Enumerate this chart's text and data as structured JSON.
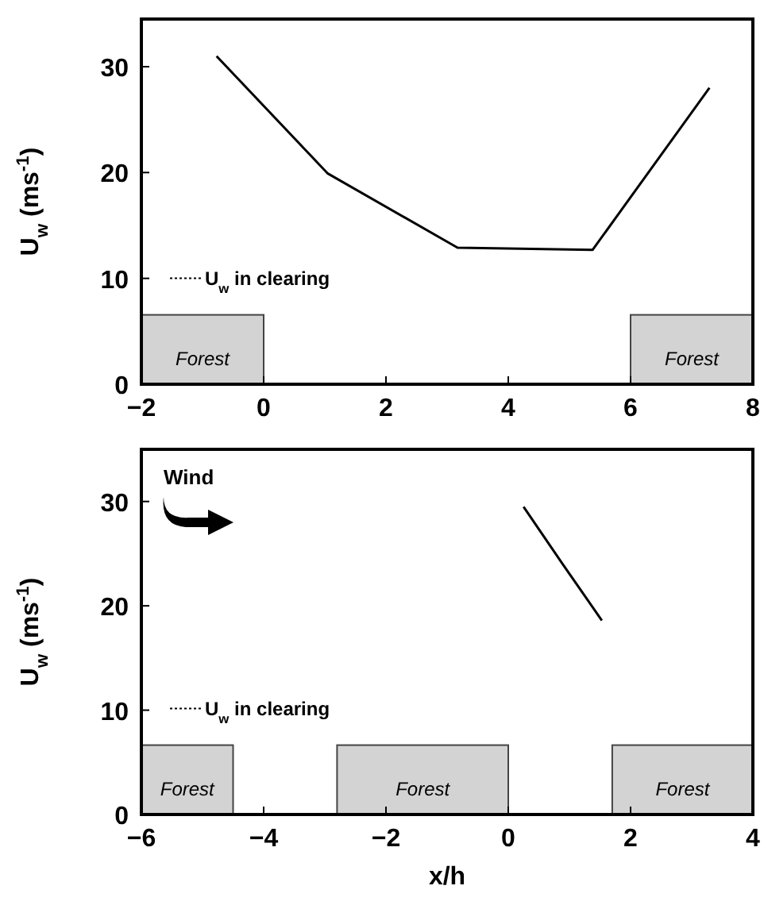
{
  "chart_data": [
    {
      "type": "line",
      "ylabel": "U$_{w}$ (ms$^{-1}$)",
      "x": [
        -0.77,
        1.05,
        3.17,
        5.38,
        7.29
      ],
      "series": [
        {
          "color": "#000000",
          "values": [
            31,
            19.9,
            12.9,
            12.7,
            28
          ]
        }
      ],
      "xlim": [
        -2,
        8
      ],
      "xticks": [
        -2,
        0,
        2,
        4,
        6,
        8
      ],
      "ylim": [
        0,
        34.5
      ],
      "yticks": [
        0,
        10,
        20,
        30
      ],
      "bands": [
        {
          "axis": "x",
          "from": -2,
          "to": 0,
          "label": "Forest",
          "color": "#d3d3d3"
        },
        {
          "axis": "x",
          "from": 6,
          "to": 8,
          "label": "Forest",
          "color": "#d3d3d3"
        }
      ],
      "annotations": [
        "U$_{w}$ in clearing"
      ]
    },
    {
      "type": "line",
      "xlabel": "x/h",
      "ylabel": "U$_{w}$ (ms$^{-1}$)",
      "x": [
        0.25,
        0.89,
        1.53
      ],
      "series": [
        {
          "color": "#000000",
          "values": [
            29.5,
            24,
            18.6
          ]
        }
      ],
      "xlim": [
        -6,
        4
      ],
      "xticks": [
        -6,
        -4,
        -2,
        0,
        2,
        4
      ],
      "ylim": [
        0,
        35
      ],
      "yticks": [
        0,
        10,
        20,
        30
      ],
      "bands": [
        {
          "axis": "x",
          "from": -6,
          "to": -4.5,
          "label": "Forest",
          "color": "#d3d3d3"
        },
        {
          "axis": "x",
          "from": -2.8,
          "to": 0,
          "label": "Forest",
          "color": "#d3d3d3"
        },
        {
          "axis": "x",
          "from": 1.7,
          "to": 4,
          "label": "Forest",
          "color": "#d3d3d3"
        }
      ],
      "annotations": [
        "Wind",
        "U$_{w}$ in clearing"
      ]
    }
  ]
}
